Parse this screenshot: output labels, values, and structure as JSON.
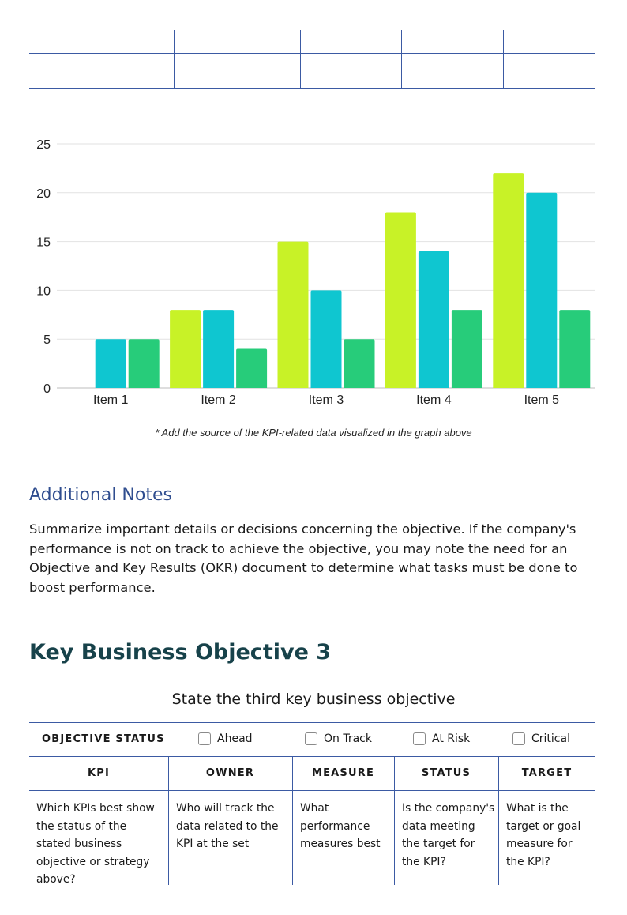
{
  "chart_data": {
    "type": "bar",
    "categories": [
      "Item 1",
      "Item 2",
      "Item 3",
      "Item 4",
      "Item 5"
    ],
    "series": [
      {
        "color": "#c8f227",
        "values": [
          0,
          8,
          15,
          18,
          22
        ]
      },
      {
        "color": "#0fc6d0",
        "values": [
          5,
          8,
          10,
          14,
          20
        ]
      },
      {
        "color": "#27cc7a",
        "values": [
          5,
          4,
          5,
          8,
          8
        ]
      }
    ],
    "yticks": [
      "0",
      "5",
      "10",
      "15",
      "20",
      "25"
    ],
    "ylim": [
      0,
      25
    ],
    "grid": true
  },
  "source_note": "* Add the source of the KPI-related data visualized in the graph above",
  "notes": {
    "heading": "Additional Notes",
    "body": "Summarize important details or decisions concerning the objective. If the company's performance is not on track to achieve the objective, you may note the need for an Objective and Key Results (OKR) document to determine what tasks must be done to boost performance."
  },
  "objective": {
    "heading": "Key Business Objective 3",
    "subtitle": "State the third key business objective",
    "status_label": "OBJECTIVE STATUS",
    "status_options": [
      "Ahead",
      "On Track",
      "At Risk",
      "Critical"
    ],
    "columns": [
      "KPI",
      "OWNER",
      "MEASURE",
      "STATUS",
      "TARGET"
    ],
    "row": [
      "Which KPIs best show the status of the stated business objective or strategy above?",
      "Who will track the data related to the KPI at the set",
      "What performance measures best",
      "Is the company's data meeting the target for the KPI?",
      "What is the target or goal measure for the KPI?"
    ]
  }
}
